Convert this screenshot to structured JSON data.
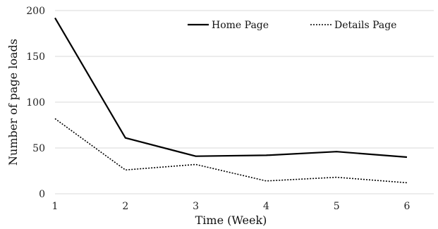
{
  "chart_data": {
    "type": "line",
    "title": "",
    "xlabel": "Time (Week)",
    "ylabel": "Number of page loads",
    "x": [
      1,
      2,
      3,
      4,
      5,
      6
    ],
    "xlim": [
      1,
      6
    ],
    "ylim": [
      0,
      200
    ],
    "yticks": [
      0,
      50,
      100,
      150,
      200
    ],
    "grid": true,
    "legend_position": "top-right",
    "series": [
      {
        "name": "Home Page",
        "style": "solid",
        "color": "#000000",
        "values": [
          192,
          61,
          41,
          42,
          46,
          40
        ]
      },
      {
        "name": "Details Page",
        "style": "dotted",
        "color": "#000000",
        "values": [
          82,
          26,
          32,
          14,
          18,
          12
        ]
      }
    ]
  }
}
